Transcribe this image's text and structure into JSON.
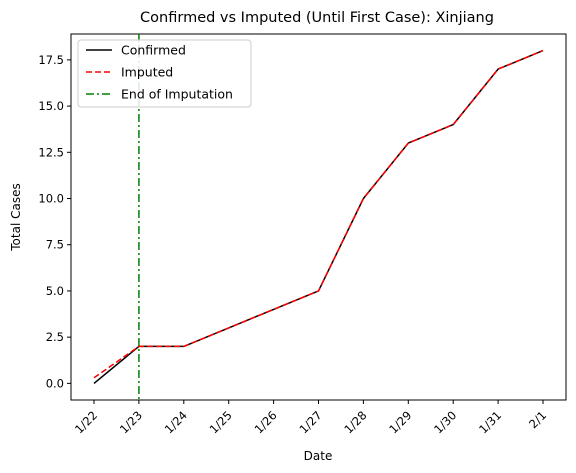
{
  "chart_data": {
    "type": "line",
    "title": "Confirmed vs Imputed (Until First Case): Xinjiang",
    "xlabel": "Date",
    "ylabel": "Total Cases",
    "categories": [
      "1/22",
      "1/23",
      "1/24",
      "1/25",
      "1/26",
      "1/27",
      "1/28",
      "1/29",
      "1/30",
      "1/31",
      "2/1"
    ],
    "ylim": [
      -0.9,
      18.9
    ],
    "yticks": [
      "0.0",
      "2.5",
      "5.0",
      "7.5",
      "10.0",
      "12.5",
      "15.0",
      "17.5"
    ],
    "series": [
      {
        "name": "Confirmed",
        "values": [
          0,
          2,
          2,
          3,
          4,
          5,
          10,
          13,
          14,
          17,
          18
        ],
        "color": "#000000",
        "style": "solid"
      },
      {
        "name": "Imputed",
        "values": [
          0.3,
          2,
          2,
          3,
          4,
          5,
          10,
          13,
          14,
          17,
          18
        ],
        "color": "#ff0000",
        "style": "dashed"
      }
    ],
    "vline": {
      "name": "End of Imputation",
      "x": "1/23",
      "color": "#008000",
      "style": "dashdot"
    },
    "legend": "top-left",
    "grid": false
  }
}
